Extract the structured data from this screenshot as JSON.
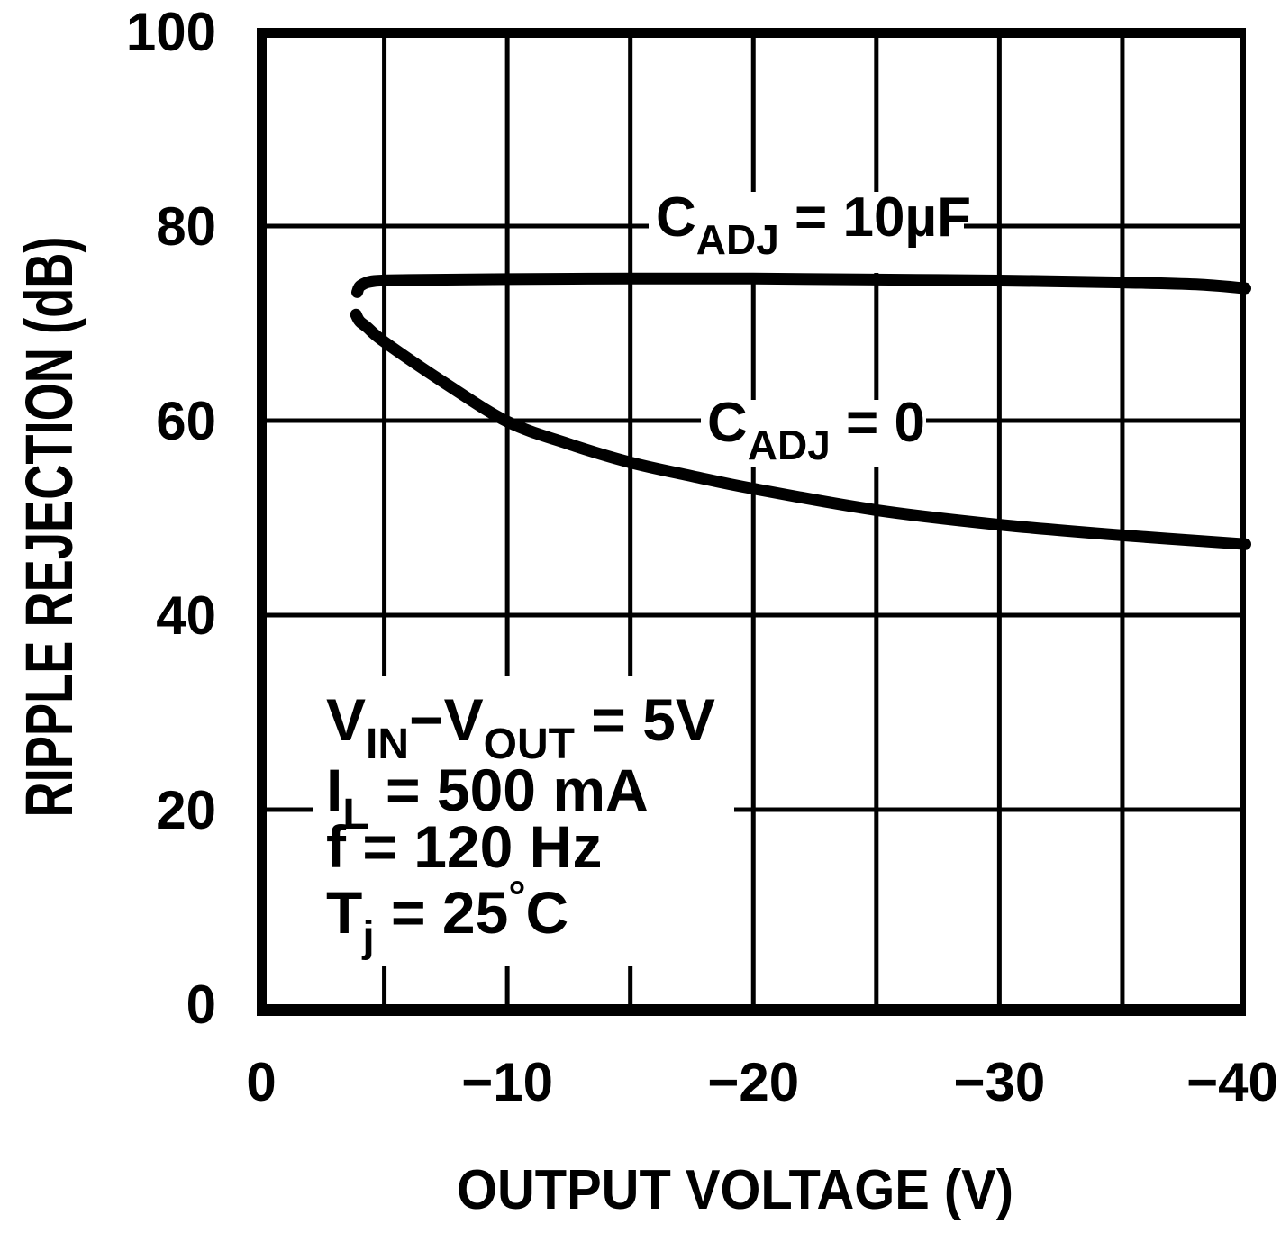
{
  "figure": {
    "background": "#ffffff",
    "ink": "#000000"
  },
  "chart_data": {
    "type": "line",
    "title": "",
    "xlabel": "OUTPUT VOLTAGE (V)",
    "ylabel": "RIPPLE REJECTION (dB)",
    "xlim": [
      0,
      -40
    ],
    "ylim": [
      0,
      100
    ],
    "grid": true,
    "x_ticks": [
      {
        "label": "0",
        "value": 0
      },
      {
        "label": "−10",
        "value": -10
      },
      {
        "label": "−20",
        "value": -20
      },
      {
        "label": "−30",
        "value": -30
      },
      {
        "label": "−40",
        "value": -40
      }
    ],
    "y_ticks": [
      {
        "label": "0",
        "value": 0
      },
      {
        "label": "20",
        "value": 20
      },
      {
        "label": "40",
        "value": 40
      },
      {
        "label": "60",
        "value": 60
      },
      {
        "label": "80",
        "value": 80
      },
      {
        "label": "100",
        "value": 100
      }
    ],
    "x_gridlines": [
      -5,
      -10,
      -15,
      -20,
      -25,
      -30,
      -35
    ],
    "y_gridlines": [
      20,
      40,
      60,
      80
    ],
    "series": [
      {
        "name": "CADJ = 10uF",
        "points": [
          [
            -3.9,
            73.2
          ],
          [
            -4.05,
            73.9
          ],
          [
            -4.6,
            74.35
          ],
          [
            -6,
            74.45
          ],
          [
            -10,
            74.55
          ],
          [
            -15,
            74.6
          ],
          [
            -20,
            74.6
          ],
          [
            -25,
            74.5
          ],
          [
            -30,
            74.4
          ],
          [
            -35,
            74.2
          ],
          [
            -38,
            74.0
          ],
          [
            -40,
            73.6
          ]
        ]
      },
      {
        "name": "CADJ = 0",
        "points": [
          [
            -3.85,
            70.9
          ],
          [
            -4.0,
            70.2
          ],
          [
            -4.3,
            69.6
          ],
          [
            -5,
            68.1
          ],
          [
            -7.5,
            63.8
          ],
          [
            -10,
            59.9
          ],
          [
            -12.5,
            57.6
          ],
          [
            -15,
            55.7
          ],
          [
            -17.5,
            54.3
          ],
          [
            -20,
            53.0
          ],
          [
            -25,
            50.8
          ],
          [
            -30,
            49.3
          ],
          [
            -35,
            48.2
          ],
          [
            -40,
            47.3
          ]
        ]
      }
    ],
    "series_labels": [
      {
        "segments": [
          {
            "t": "C"
          },
          {
            "t": "ADJ",
            "pos": "sub"
          },
          {
            "t": " = 10µF"
          }
        ]
      },
      {
        "segments": [
          {
            "t": "C"
          },
          {
            "t": "ADJ",
            "pos": "sub"
          },
          {
            "t": " = 0"
          }
        ]
      }
    ],
    "conditions": [
      {
        "segments": [
          {
            "t": "V"
          },
          {
            "t": "IN",
            "pos": "sub"
          },
          {
            "t": "−V"
          },
          {
            "t": "OUT",
            "pos": "sub"
          },
          {
            "t": " = 5V"
          }
        ]
      },
      {
        "segments": [
          {
            "t": "I"
          },
          {
            "t": "L",
            "pos": "sub"
          },
          {
            "t": " = 500 mA"
          }
        ]
      },
      {
        "segments": [
          {
            "t": "f = 120 Hz"
          }
        ]
      },
      {
        "segments": [
          {
            "t": "T"
          },
          {
            "t": "j",
            "pos": "sub"
          },
          {
            "t": " = 25"
          },
          {
            "t": "°",
            "pos": "sup"
          },
          {
            "t": "C"
          }
        ]
      }
    ],
    "legend_position": "labels-on-gridlines"
  }
}
